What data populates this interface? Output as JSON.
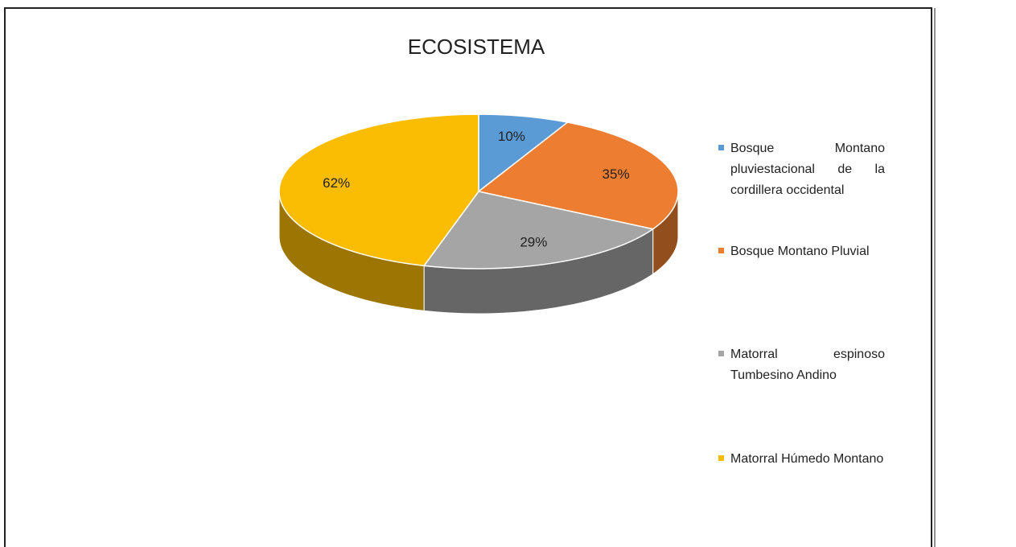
{
  "chart_data": {
    "type": "pie3d",
    "title": "ECOSISTEMA",
    "categories": [
      "Bosque Montano pluviestacional de la cordillera occidental",
      "Bosque Montano Pluvial",
      "Matorral espinoso Tumbesino Andino",
      "Matorral Húmedo Montano"
    ],
    "values": [
      10,
      35,
      29,
      62
    ],
    "value_labels": [
      "10%",
      "35%",
      "29%",
      "62%"
    ],
    "colors": [
      "#5b9bd5",
      "#ed7d31",
      "#a5a5a5",
      "#fbbc04"
    ],
    "legend": "right"
  }
}
